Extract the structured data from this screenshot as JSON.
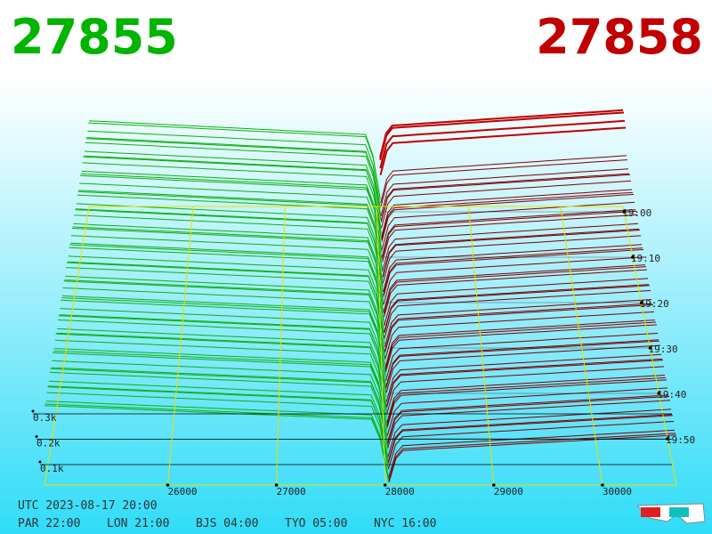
{
  "header": {
    "bid": "27855",
    "ask": "27858"
  },
  "price_axis": [
    "26000",
    "27000",
    "28000",
    "29000",
    "30000"
  ],
  "volume_axis": [
    "0.3k",
    "0.2k",
    "0.1k"
  ],
  "time_axis": [
    "19:00",
    "19:10",
    "19:20",
    "19:30",
    "19:40",
    "19:50"
  ],
  "footer": {
    "utc": "UTC 2023-08-17 20:00",
    "clocks": [
      "PAR 22:00",
      "LON 21:00",
      "BJS 04:00",
      "TYO 05:00",
      "NYC 16:00"
    ]
  }
}
